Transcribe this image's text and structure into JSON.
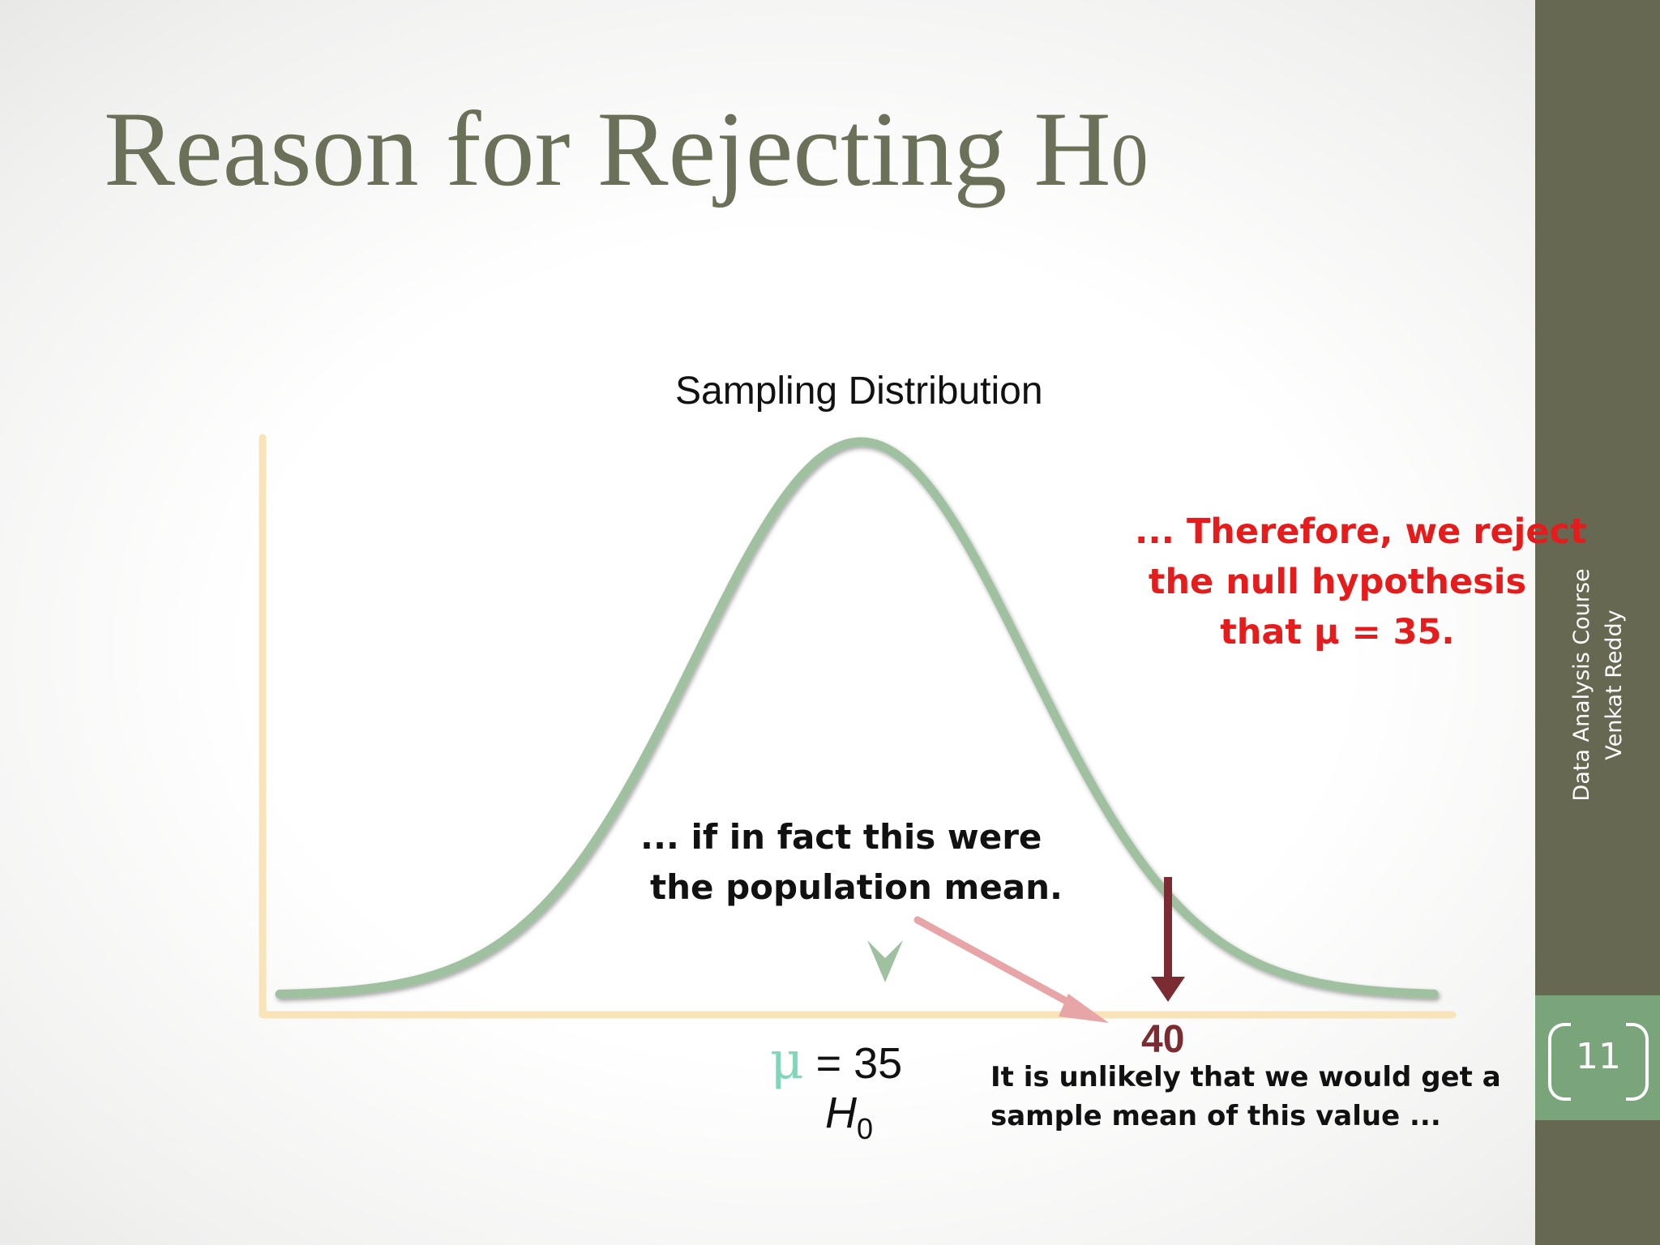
{
  "slide": {
    "title": "Reason for Rejecting H",
    "title_subscript": "0",
    "page_number": "11",
    "footer_lines": [
      "Data Analysis Course",
      "Venkat Reddy"
    ]
  },
  "diagram": {
    "distribution_title": "Sampling Distribution",
    "reject_note": [
      "... Therefore, we reject",
      "the null hypothesis",
      "that μ = 35."
    ],
    "population_note": [
      "... if in fact this were",
      "the population mean."
    ],
    "mu_symbol": "μ",
    "mu_value": " = 35",
    "h0_letter": "H",
    "h0_subscript": "0",
    "sample_value": "40",
    "sample_note": [
      "It is unlikely that we would get a",
      "sample mean of this value ..."
    ]
  },
  "colors": {
    "title": "#6b7158",
    "curve": "#9fc19f",
    "axis": "#f9e3b8",
    "reject_text": "#e61c1c",
    "sample_arrow": "#7b2b32",
    "pointer_arrow": "#e8a5a8",
    "mean_marker": "#9fc19f",
    "side_panel": "#666851",
    "page_box": "#7aa57a"
  }
}
